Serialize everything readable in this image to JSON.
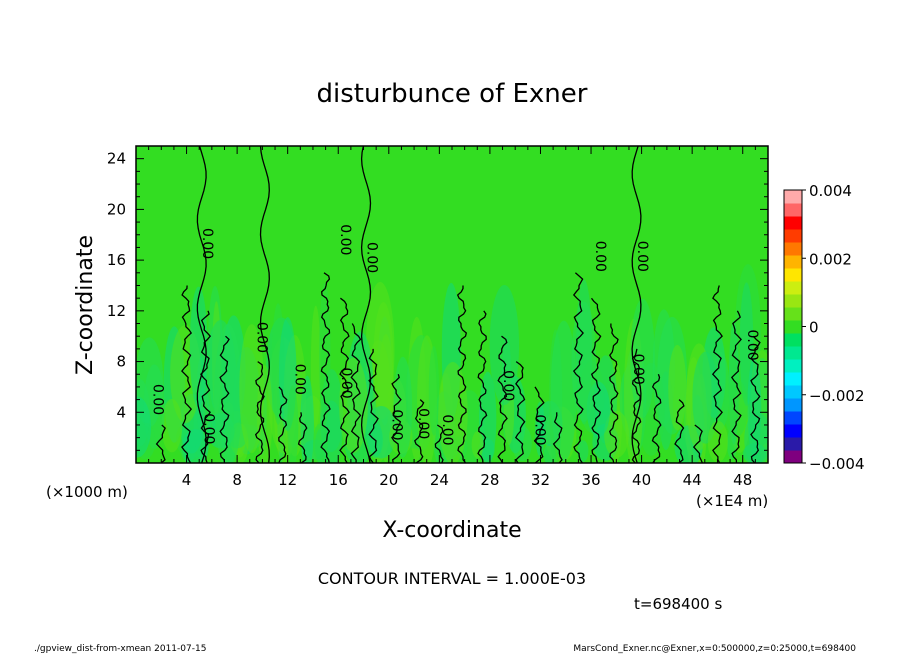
{
  "chart_data": {
    "type": "heatmap",
    "title": "disturbunce of Exner",
    "xlabel": "X-coordinate",
    "ylabel": "Z-coordinate",
    "x_unit_left": "(×1000 m)",
    "x_unit_right": "(×1E4 m)",
    "xlim": [
      0,
      50
    ],
    "ylim": [
      0,
      25
    ],
    "x_ticks": [
      "4",
      "8",
      "12",
      "16",
      "20",
      "24",
      "28",
      "32",
      "36",
      "40",
      "44",
      "48"
    ],
    "x_tick_values": [
      4,
      8,
      12,
      16,
      20,
      24,
      28,
      32,
      36,
      40,
      44,
      48
    ],
    "y_ticks": [
      "4",
      "8",
      "12",
      "16",
      "20",
      "24"
    ],
    "y_tick_values": [
      4,
      8,
      12,
      16,
      20,
      24
    ],
    "colorbar": {
      "ticks": [
        "0.004",
        "0.002",
        "0",
        "−0.002",
        "−0.004"
      ],
      "tick_values": [
        0.004,
        0.002,
        0,
        -0.002,
        -0.004
      ],
      "range": [
        -0.004,
        0.004
      ],
      "colors": [
        "#7f007f",
        "#2a1aa8",
        "#0000ff",
        "#0046ff",
        "#0096ff",
        "#00c8ff",
        "#00f0ff",
        "#00f0c0",
        "#00e890",
        "#00e060",
        "#33dd22",
        "#66e11a",
        "#99e612",
        "#ccee11",
        "#ffe600",
        "#ffb400",
        "#ff7800",
        "#ff3c00",
        "#ff0000",
        "#ff6666",
        "#ffaaaa"
      ]
    },
    "contour_interval": "CONTOUR INTERVAL = 1.000E-03",
    "contour_labels": [
      {
        "text": "0.00",
        "x": 1.4,
        "z": 5.0
      },
      {
        "text": "0.00",
        "x": 5.4,
        "z": 2.7
      },
      {
        "text": "0.00",
        "x": 5.3,
        "z": 17.3
      },
      {
        "text": "0.00",
        "x": 9.6,
        "z": 9.9
      },
      {
        "text": "0.00",
        "x": 12.6,
        "z": 6.6
      },
      {
        "text": "0.00",
        "x": 16.3,
        "z": 6.3
      },
      {
        "text": "0.00",
        "x": 16.2,
        "z": 17.6
      },
      {
        "text": "0.00",
        "x": 18.3,
        "z": 16.2
      },
      {
        "text": "0.00",
        "x": 20.3,
        "z": 3.0
      },
      {
        "text": "0.00",
        "x": 22.4,
        "z": 3.1
      },
      {
        "text": "0.00",
        "x": 24.3,
        "z": 2.6
      },
      {
        "text": "0.00",
        "x": 29.1,
        "z": 6.1
      },
      {
        "text": "0.00",
        "x": 31.6,
        "z": 2.6
      },
      {
        "text": "0.00",
        "x": 36.4,
        "z": 16.3
      },
      {
        "text": "0.00",
        "x": 39.4,
        "z": 7.4
      },
      {
        "text": "0.00",
        "x": 39.7,
        "z": 16.3
      },
      {
        "text": "0.00",
        "x": 48.4,
        "z": 9.3
      }
    ]
  },
  "footer": {
    "time": "t=698400 s",
    "left": "./gpview_dist-from-xmean  2011-07-15",
    "right": "MarsCond_Exner.nc@Exner,x=0:500000,z=0:25000,t=698400"
  }
}
